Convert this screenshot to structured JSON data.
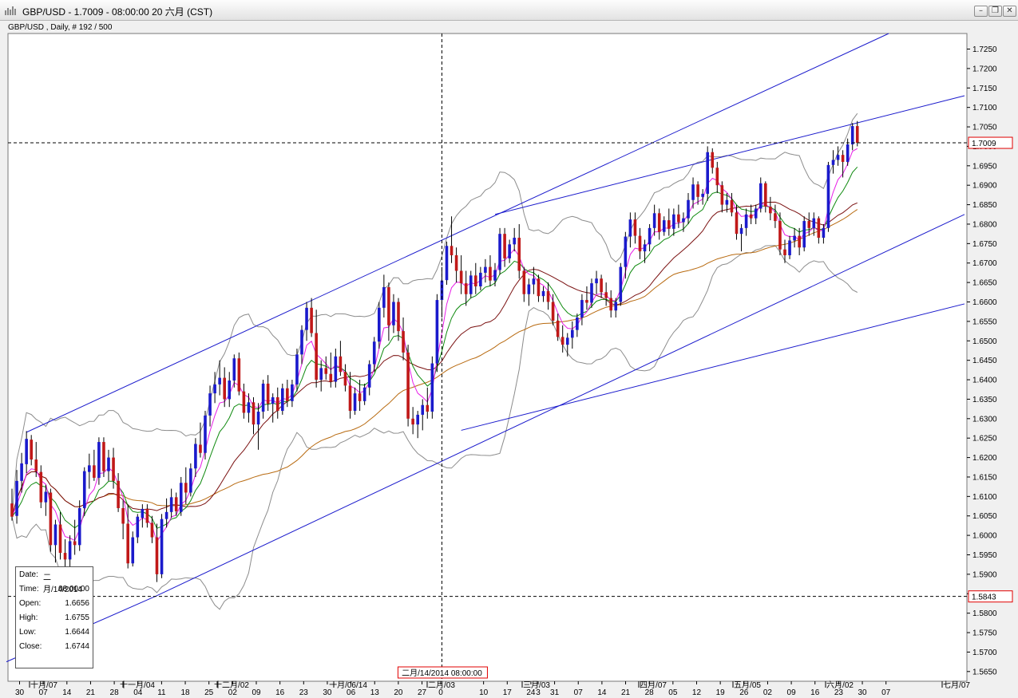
{
  "window": {
    "title": "GBP/USD - 1.7009 - 08:00:00  20 六月 (CST)",
    "minimize_glyph": "–",
    "restore_glyph": "❐",
    "close_glyph": "✕",
    "app_icon": "bar-chart-icon"
  },
  "chart_header": "GBP/USD , Daily, # 192 / 500",
  "info_box": {
    "rows": [
      {
        "label": "Date:",
        "value": "二月/14/2014"
      },
      {
        "label": "Time:",
        "value": "08:00:00"
      },
      {
        "label": "Open:",
        "value": "1.6656"
      },
      {
        "label": "High:",
        "value": "1.6755"
      },
      {
        "label": "Low:",
        "value": "1.6644"
      },
      {
        "label": "Close:",
        "value": "1.6744"
      }
    ]
  },
  "crosshair": {
    "date_label": "二月/14/2014 08:00:00",
    "price_marker": "1.5843"
  },
  "colors": {
    "bullish": "#1a1acc",
    "bearish": "#c01818",
    "trendline": "#1a1acc",
    "ma_magenta": "#e81ee8",
    "ma_green": "#0f8a0f",
    "ma_brown": "#7a1010",
    "ma_orange": "#b86a10",
    "bollinger": "#8c8c8c",
    "marker_border": "#e00000"
  },
  "chart_data": {
    "type": "candlestick",
    "symbol": "GBP/USD",
    "timeframe": "Daily",
    "last_price": "1.7009",
    "ylim": [
      1.5625,
      1.729
    ],
    "y_ticks": [
      "1.7250",
      "1.7200",
      "1.7150",
      "1.7100",
      "1.7050",
      "1.7000",
      "1.6950",
      "1.6900",
      "1.6850",
      "1.6800",
      "1.6750",
      "1.6700",
      "1.6650",
      "1.6600",
      "1.6550",
      "1.6500",
      "1.6450",
      "1.6400",
      "1.6350",
      "1.6300",
      "1.6250",
      "1.6200",
      "1.6150",
      "1.6100",
      "1.6050",
      "1.6000",
      "1.5950",
      "1.5900",
      "1.5850",
      "1.5800",
      "1.5750",
      "1.5700",
      "1.5650"
    ],
    "x_ticks": [
      "30",
      "07",
      "14",
      "21",
      "28",
      "04",
      "11",
      "18",
      "25",
      "02",
      "09",
      "16",
      "23",
      "30",
      "06",
      "13",
      "20",
      "27",
      "0",
      "3",
      "10",
      "17",
      "24",
      "31",
      "07",
      "14",
      "21",
      "28",
      "05",
      "12",
      "19",
      "26",
      "02",
      "09",
      "16",
      "23",
      "30",
      "07"
    ],
    "month_labels": [
      "十月/07",
      "十一月/04",
      "十二月/02",
      "一月/06/14",
      "二月/03",
      "三月/03",
      "四月/07",
      "五月/05",
      "六月/02",
      "七月/07"
    ],
    "candles": [
      [
        1.6082,
        1.612,
        1.6038,
        1.6048
      ],
      [
        1.605,
        1.6168,
        1.603,
        1.614
      ],
      [
        1.614,
        1.6212,
        1.611,
        1.6185
      ],
      [
        1.6183,
        1.6268,
        1.616,
        1.6248
      ],
      [
        1.6246,
        1.6258,
        1.618,
        1.6195
      ],
      [
        1.6195,
        1.624,
        1.615,
        1.6165
      ],
      [
        1.6163,
        1.618,
        1.607,
        1.6085
      ],
      [
        1.6085,
        1.613,
        1.605,
        1.6112
      ],
      [
        1.611,
        1.612,
        1.5958,
        1.5975
      ],
      [
        1.5975,
        1.604,
        1.593,
        1.6028
      ],
      [
        1.6028,
        1.606,
        1.5938,
        1.5955
      ],
      [
        1.5955,
        1.599,
        1.5912,
        1.5938
      ],
      [
        1.5938,
        1.6,
        1.592,
        1.5985
      ],
      [
        1.5985,
        1.604,
        1.595,
        1.5975
      ],
      [
        1.5975,
        1.609,
        1.596,
        1.607
      ],
      [
        1.607,
        1.6175,
        1.605,
        1.6165
      ],
      [
        1.6163,
        1.621,
        1.612,
        1.618
      ],
      [
        1.618,
        1.622,
        1.614,
        1.6148
      ],
      [
        1.6148,
        1.6252,
        1.613,
        1.624
      ],
      [
        1.624,
        1.6252,
        1.615,
        1.6165
      ],
      [
        1.6165,
        1.622,
        1.614,
        1.62
      ],
      [
        1.62,
        1.6225,
        1.612,
        1.614
      ],
      [
        1.614,
        1.616,
        1.606,
        1.607
      ],
      [
        1.607,
        1.609,
        1.599,
        1.603
      ],
      [
        1.603,
        1.608,
        1.5915,
        1.5928
      ],
      [
        1.5928,
        1.601,
        1.592,
        1.5995
      ],
      [
        1.5995,
        1.6055,
        1.598,
        1.6048
      ],
      [
        1.6045,
        1.608,
        1.602,
        1.6068
      ],
      [
        1.6068,
        1.608,
        1.602,
        1.6032
      ],
      [
        1.6032,
        1.605,
        1.598,
        1.5995
      ],
      [
        1.5995,
        1.603,
        1.588,
        1.59
      ],
      [
        1.59,
        1.6055,
        1.589,
        1.6042
      ],
      [
        1.6042,
        1.6095,
        1.602,
        1.606
      ],
      [
        1.606,
        1.612,
        1.6045,
        1.6098
      ],
      [
        1.6098,
        1.611,
        1.605,
        1.6062
      ],
      [
        1.606,
        1.615,
        1.605,
        1.6135
      ],
      [
        1.6135,
        1.6175,
        1.608,
        1.611
      ],
      [
        1.611,
        1.6185,
        1.61,
        1.6172
      ],
      [
        1.6172,
        1.625,
        1.615,
        1.6235
      ],
      [
        1.6233,
        1.629,
        1.62,
        1.6212
      ],
      [
        1.6212,
        1.632,
        1.6195,
        1.6308
      ],
      [
        1.6308,
        1.6385,
        1.628,
        1.6365
      ],
      [
        1.6365,
        1.642,
        1.634,
        1.6388
      ],
      [
        1.6388,
        1.645,
        1.636,
        1.6405
      ],
      [
        1.6405,
        1.6432,
        1.633,
        1.635
      ],
      [
        1.635,
        1.642,
        1.633,
        1.6398
      ],
      [
        1.6398,
        1.6465,
        1.638,
        1.6455
      ],
      [
        1.6455,
        1.647,
        1.636,
        1.637
      ],
      [
        1.637,
        1.639,
        1.63,
        1.6315
      ],
      [
        1.6315,
        1.6365,
        1.629,
        1.6342
      ],
      [
        1.6342,
        1.6355,
        1.626,
        1.6285
      ],
      [
        1.6285,
        1.634,
        1.622,
        1.6318
      ],
      [
        1.6318,
        1.64,
        1.63,
        1.639
      ],
      [
        1.639,
        1.6412,
        1.632,
        1.6338
      ],
      [
        1.6338,
        1.6365,
        1.629,
        1.6355
      ],
      [
        1.6355,
        1.638,
        1.63,
        1.632
      ],
      [
        1.632,
        1.639,
        1.631,
        1.6378
      ],
      [
        1.6378,
        1.64,
        1.633,
        1.6345
      ],
      [
        1.6345,
        1.64,
        1.633,
        1.6388
      ],
      [
        1.6388,
        1.648,
        1.637,
        1.6465
      ],
      [
        1.6465,
        1.654,
        1.644,
        1.6528
      ],
      [
        1.6528,
        1.66,
        1.65,
        1.6585
      ],
      [
        1.6585,
        1.661,
        1.651,
        1.652
      ],
      [
        1.652,
        1.658,
        1.638,
        1.64
      ],
      [
        1.64,
        1.645,
        1.637,
        1.643
      ],
      [
        1.643,
        1.646,
        1.64,
        1.6415
      ],
      [
        1.6415,
        1.647,
        1.638,
        1.6395
      ],
      [
        1.6395,
        1.648,
        1.638,
        1.646
      ],
      [
        1.646,
        1.65,
        1.641,
        1.642
      ],
      [
        1.642,
        1.644,
        1.637,
        1.6385
      ],
      [
        1.6385,
        1.642,
        1.63,
        1.632
      ],
      [
        1.632,
        1.638,
        1.631,
        1.6365
      ],
      [
        1.6365,
        1.64,
        1.632,
        1.6345
      ],
      [
        1.6345,
        1.639,
        1.6335,
        1.638
      ],
      [
        1.638,
        1.645,
        1.636,
        1.644
      ],
      [
        1.644,
        1.651,
        1.642,
        1.6498
      ],
      [
        1.6498,
        1.66,
        1.648,
        1.6585
      ],
      [
        1.6585,
        1.667,
        1.656,
        1.6638
      ],
      [
        1.6638,
        1.665,
        1.65,
        1.654
      ],
      [
        1.654,
        1.662,
        1.652,
        1.66
      ],
      [
        1.66,
        1.661,
        1.65,
        1.6525
      ],
      [
        1.6525,
        1.656,
        1.645,
        1.647
      ],
      [
        1.647,
        1.649,
        1.628,
        1.63
      ],
      [
        1.63,
        1.633,
        1.626,
        1.6285
      ],
      [
        1.6285,
        1.632,
        1.625,
        1.631
      ],
      [
        1.631,
        1.635,
        1.627,
        1.6335
      ],
      [
        1.6335,
        1.638,
        1.63,
        1.6318
      ],
      [
        1.6318,
        1.646,
        1.63,
        1.6442
      ],
      [
        1.6442,
        1.662,
        1.642,
        1.6605
      ],
      [
        1.6605,
        1.669,
        1.656,
        1.6655
      ],
      [
        1.6656,
        1.6755,
        1.6644,
        1.6744
      ],
      [
        1.6744,
        1.682,
        1.67,
        1.672
      ],
      [
        1.672,
        1.674,
        1.665,
        1.668
      ],
      [
        1.668,
        1.672,
        1.662,
        1.6648
      ],
      [
        1.6648,
        1.668,
        1.659,
        1.662
      ],
      [
        1.662,
        1.668,
        1.661,
        1.6668
      ],
      [
        1.6668,
        1.67,
        1.662,
        1.664
      ],
      [
        1.664,
        1.669,
        1.663,
        1.6675
      ],
      [
        1.6675,
        1.671,
        1.665,
        1.669
      ],
      [
        1.669,
        1.672,
        1.664,
        1.6655
      ],
      [
        1.6655,
        1.67,
        1.664,
        1.6682
      ],
      [
        1.6682,
        1.679,
        1.667,
        1.6775
      ],
      [
        1.6775,
        1.679,
        1.669,
        1.6712
      ],
      [
        1.6712,
        1.676,
        1.67,
        1.6748
      ],
      [
        1.6748,
        1.679,
        1.673,
        1.6765
      ],
      [
        1.6765,
        1.68,
        1.666,
        1.668
      ],
      [
        1.668,
        1.669,
        1.66,
        1.662
      ],
      [
        1.662,
        1.666,
        1.659,
        1.6645
      ],
      [
        1.6645,
        1.669,
        1.662,
        1.666
      ],
      [
        1.666,
        1.667,
        1.66,
        1.6615
      ],
      [
        1.6615,
        1.664,
        1.66,
        1.6628
      ],
      [
        1.6628,
        1.665,
        1.658,
        1.66
      ],
      [
        1.66,
        1.662,
        1.654,
        1.6552
      ],
      [
        1.6552,
        1.657,
        1.65,
        1.651
      ],
      [
        1.651,
        1.654,
        1.647,
        1.649
      ],
      [
        1.649,
        1.652,
        1.646,
        1.6508
      ],
      [
        1.6508,
        1.655,
        1.648,
        1.6528
      ],
      [
        1.6528,
        1.657,
        1.651,
        1.656
      ],
      [
        1.656,
        1.662,
        1.654,
        1.6605
      ],
      [
        1.6605,
        1.664,
        1.658,
        1.6598
      ],
      [
        1.6598,
        1.666,
        1.6585,
        1.6648
      ],
      [
        1.6648,
        1.668,
        1.662,
        1.666
      ],
      [
        1.666,
        1.667,
        1.661,
        1.6625
      ],
      [
        1.6625,
        1.665,
        1.659,
        1.661
      ],
      [
        1.661,
        1.663,
        1.656,
        1.6578
      ],
      [
        1.6578,
        1.661,
        1.656,
        1.66
      ],
      [
        1.66,
        1.67,
        1.659,
        1.669
      ],
      [
        1.669,
        1.678,
        1.666,
        1.6768
      ],
      [
        1.6768,
        1.683,
        1.674,
        1.6812
      ],
      [
        1.6812,
        1.683,
        1.675,
        1.677
      ],
      [
        1.677,
        1.679,
        1.671,
        1.673
      ],
      [
        1.673,
        1.676,
        1.67,
        1.6748
      ],
      [
        1.6748,
        1.68,
        1.673,
        1.679
      ],
      [
        1.679,
        1.685,
        1.677,
        1.6828
      ],
      [
        1.6828,
        1.684,
        1.676,
        1.678
      ],
      [
        1.678,
        1.682,
        1.677,
        1.681
      ],
      [
        1.681,
        1.684,
        1.677,
        1.6788
      ],
      [
        1.6788,
        1.684,
        1.677,
        1.6825
      ],
      [
        1.6825,
        1.685,
        1.679,
        1.6805
      ],
      [
        1.6805,
        1.683,
        1.678,
        1.6815
      ],
      [
        1.6815,
        1.688,
        1.68,
        1.6862
      ],
      [
        1.6862,
        1.692,
        1.684,
        1.6902
      ],
      [
        1.6902,
        1.691,
        1.685,
        1.687
      ],
      [
        1.687,
        1.689,
        1.685,
        1.6878
      ],
      [
        1.6878,
        1.7,
        1.686,
        1.6985
      ],
      [
        1.6985,
        1.6995,
        1.693,
        1.6945
      ],
      [
        1.6945,
        1.696,
        1.688,
        1.69
      ],
      [
        1.69,
        1.691,
        1.683,
        1.685
      ],
      [
        1.685,
        1.688,
        1.683,
        1.6862
      ],
      [
        1.6862,
        1.688,
        1.682,
        1.683
      ],
      [
        1.683,
        1.685,
        1.676,
        1.6775
      ],
      [
        1.6775,
        1.68,
        1.673,
        1.679
      ],
      [
        1.679,
        1.684,
        1.677,
        1.6825
      ],
      [
        1.6825,
        1.685,
        1.68,
        1.6815
      ],
      [
        1.6815,
        1.685,
        1.68,
        1.684
      ],
      [
        1.684,
        1.692,
        1.683,
        1.6905
      ],
      [
        1.6905,
        1.691,
        1.683,
        1.6845
      ],
      [
        1.6845,
        1.687,
        1.681,
        1.6828
      ],
      [
        1.6828,
        1.685,
        1.679,
        1.6808
      ],
      [
        1.6808,
        1.683,
        1.672,
        1.6735
      ],
      [
        1.6735,
        1.676,
        1.67,
        1.672
      ],
      [
        1.672,
        1.677,
        1.671,
        1.6758
      ],
      [
        1.6758,
        1.679,
        1.674,
        1.677
      ],
      [
        1.677,
        1.679,
        1.672,
        1.674
      ],
      [
        1.674,
        1.682,
        1.673,
        1.6808
      ],
      [
        1.6808,
        1.683,
        1.677,
        1.679
      ],
      [
        1.679,
        1.683,
        1.677,
        1.6815
      ],
      [
        1.6815,
        1.682,
        1.675,
        1.6765
      ],
      [
        1.6765,
        1.68,
        1.675,
        1.679
      ],
      [
        1.679,
        1.696,
        1.678,
        1.6952
      ],
      [
        1.6952,
        1.699,
        1.693,
        1.6965
      ],
      [
        1.6965,
        1.7,
        1.695,
        1.6978
      ],
      [
        1.6978,
        1.699,
        1.692,
        1.696
      ],
      [
        1.696,
        1.702,
        1.695,
        1.7005
      ],
      [
        1.7005,
        1.706,
        1.699,
        1.7052
      ],
      [
        1.7052,
        1.7065,
        1.7,
        1.7009
      ]
    ]
  }
}
